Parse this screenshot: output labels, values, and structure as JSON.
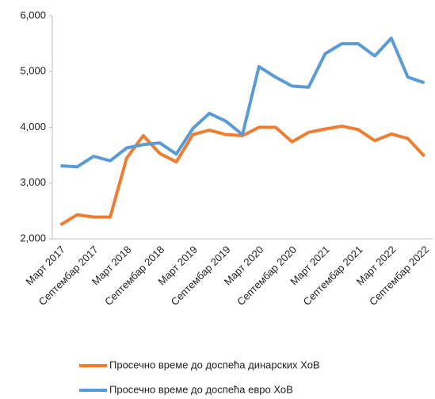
{
  "chart_data": {
    "type": "line",
    "categories": [
      "Март 2017",
      null,
      "Септембар 2017",
      null,
      "Март 2018",
      null,
      "Септембар 2018",
      null,
      "Март 2019",
      null,
      "Септембар 2019",
      null,
      "Март 2020",
      null,
      "Септембар 2020",
      null,
      "Март 2021",
      null,
      "Септембар 2021",
      null,
      "Март 2022",
      null,
      "Септембар 2022"
    ],
    "series": [
      {
        "name": "Просечно време до доспећа динарских ХоВ",
        "color": "#ed7d31",
        "values": [
          2250,
          2430,
          2390,
          2390,
          3450,
          3850,
          3530,
          3380,
          3870,
          3950,
          3870,
          3850,
          4000,
          4000,
          3740,
          3910,
          3970,
          4020,
          3960,
          3760,
          3880,
          3800,
          3480
        ]
      },
      {
        "name": "Просечно време до доспећа евро ХоВ",
        "color": "#5b9bd5",
        "values": [
          3310,
          3290,
          3480,
          3400,
          3630,
          3690,
          3720,
          3520,
          3980,
          4250,
          4110,
          3870,
          5090,
          4900,
          4740,
          4720,
          5320,
          5500,
          5500,
          5280,
          5600,
          4900,
          4800
        ]
      }
    ],
    "ylim": [
      2000,
      6000
    ],
    "yticks": [
      {
        "value": 2000,
        "label": "2,000"
      },
      {
        "value": 3000,
        "label": "3,000"
      },
      {
        "value": 4000,
        "label": "4,000"
      },
      {
        "value": 5000,
        "label": "5,000"
      },
      {
        "value": 6000,
        "label": "6,000"
      }
    ],
    "grid": false,
    "legend": "bottom"
  }
}
